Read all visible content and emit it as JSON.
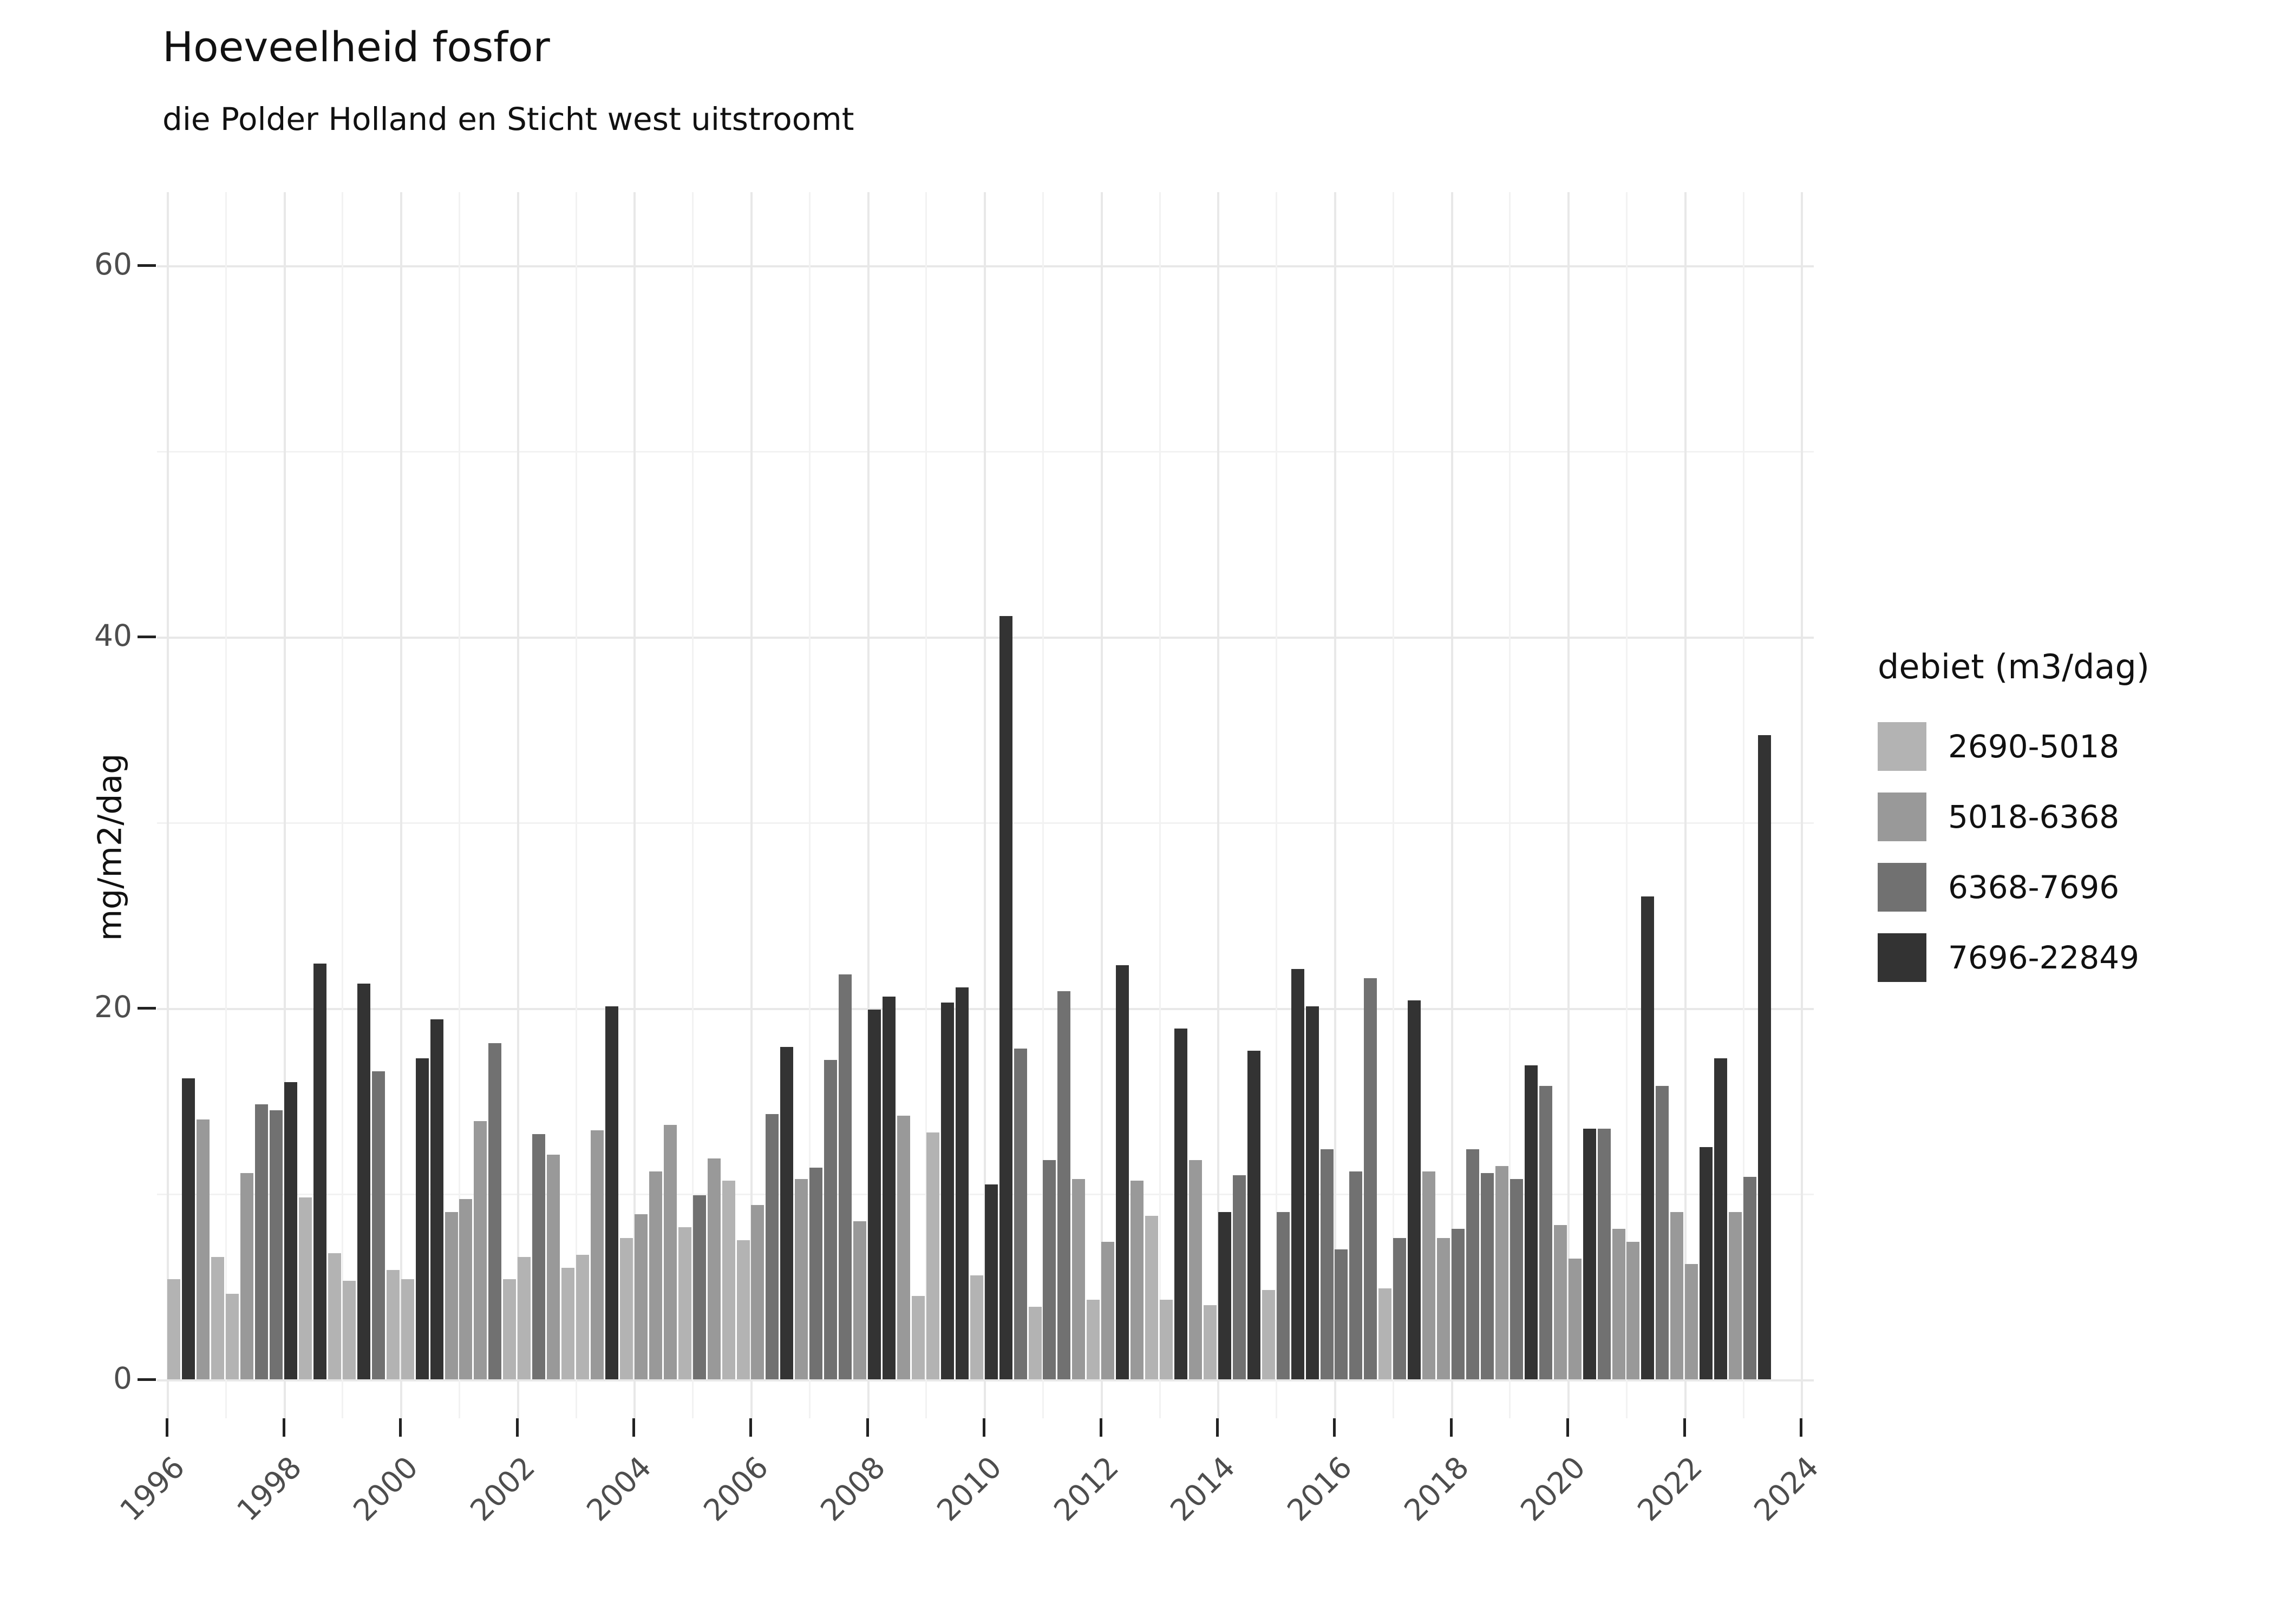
{
  "header": {
    "title": "Hoeveelheid fosfor",
    "subtitle": "die Polder Holland en Sticht west uitstroomt"
  },
  "chart_data": {
    "type": "bar",
    "title": "Hoeveelheid fosfor",
    "subtitle": "die Polder Holland en Sticht west uitstroomt",
    "xlabel": "",
    "ylabel": "mg/m2/dag",
    "ylim": [
      0,
      64
    ],
    "y_ticks": [
      0,
      20,
      40,
      60
    ],
    "y_minor_gridlines": [
      10,
      30,
      50
    ],
    "x_tick_years": [
      1996,
      1998,
      2000,
      2002,
      2004,
      2006,
      2008,
      2010,
      2012,
      2014,
      2016,
      2018,
      2020,
      2022,
      2024
    ],
    "x_year_range": [
      1996,
      2024
    ],
    "grid": "on",
    "legend_position": "right",
    "legend": {
      "title": "debiet (m3/dag)",
      "entries": [
        {
          "label": "2690-5018",
          "color": "#b3b3b3"
        },
        {
          "label": "5018-6368",
          "color": "#999999"
        },
        {
          "label": "6368-7696",
          "color": "#717171"
        },
        {
          "label": "7696-22849",
          "color": "#333333"
        }
      ]
    },
    "series_note": "value = mg/m2/dag per quarter; c = index into legend entries (flow quartile)",
    "bars": [
      {
        "year": 1996,
        "q": 1,
        "v": 5.4,
        "c": 0
      },
      {
        "year": 1996,
        "q": 2,
        "v": 16.2,
        "c": 3
      },
      {
        "year": 1996,
        "q": 3,
        "v": 14.0,
        "c": 1
      },
      {
        "year": 1996,
        "q": 4,
        "v": 6.6,
        "c": 0
      },
      {
        "year": 1997,
        "q": 1,
        "v": 4.6,
        "c": 0
      },
      {
        "year": 1997,
        "q": 2,
        "v": 11.1,
        "c": 1
      },
      {
        "year": 1997,
        "q": 3,
        "v": 14.8,
        "c": 2
      },
      {
        "year": 1997,
        "q": 4,
        "v": 14.5,
        "c": 2
      },
      {
        "year": 1998,
        "q": 1,
        "v": 16.0,
        "c": 3
      },
      {
        "year": 1998,
        "q": 2,
        "v": 9.8,
        "c": 0
      },
      {
        "year": 1998,
        "q": 3,
        "v": 22.4,
        "c": 3
      },
      {
        "year": 1998,
        "q": 4,
        "v": 6.8,
        "c": 0
      },
      {
        "year": 1999,
        "q": 1,
        "v": 5.3,
        "c": 0
      },
      {
        "year": 1999,
        "q": 2,
        "v": 21.3,
        "c": 3
      },
      {
        "year": 1999,
        "q": 3,
        "v": 16.6,
        "c": 2
      },
      {
        "year": 1999,
        "q": 4,
        "v": 5.9,
        "c": 0
      },
      {
        "year": 2000,
        "q": 1,
        "v": 5.4,
        "c": 0
      },
      {
        "year": 2000,
        "q": 2,
        "v": 17.3,
        "c": 3
      },
      {
        "year": 2000,
        "q": 3,
        "v": 19.4,
        "c": 3
      },
      {
        "year": 2000,
        "q": 4,
        "v": 9.0,
        "c": 1
      },
      {
        "year": 2001,
        "q": 1,
        "v": 9.7,
        "c": 1
      },
      {
        "year": 2001,
        "q": 2,
        "v": 13.9,
        "c": 1
      },
      {
        "year": 2001,
        "q": 3,
        "v": 18.1,
        "c": 2
      },
      {
        "year": 2001,
        "q": 4,
        "v": 5.4,
        "c": 0
      },
      {
        "year": 2002,
        "q": 1,
        "v": 6.6,
        "c": 0
      },
      {
        "year": 2002,
        "q": 2,
        "v": 13.2,
        "c": 2
      },
      {
        "year": 2002,
        "q": 3,
        "v": 12.1,
        "c": 1
      },
      {
        "year": 2002,
        "q": 4,
        "v": 6.0,
        "c": 0
      },
      {
        "year": 2003,
        "q": 1,
        "v": 6.7,
        "c": 0
      },
      {
        "year": 2003,
        "q": 2,
        "v": 13.4,
        "c": 1
      },
      {
        "year": 2003,
        "q": 3,
        "v": 20.1,
        "c": 3
      },
      {
        "year": 2003,
        "q": 4,
        "v": 7.6,
        "c": 0
      },
      {
        "year": 2004,
        "q": 1,
        "v": 8.9,
        "c": 1
      },
      {
        "year": 2004,
        "q": 2,
        "v": 11.2,
        "c": 1
      },
      {
        "year": 2004,
        "q": 3,
        "v": 13.7,
        "c": 1
      },
      {
        "year": 2004,
        "q": 4,
        "v": 8.2,
        "c": 0
      },
      {
        "year": 2005,
        "q": 1,
        "v": 9.9,
        "c": 2
      },
      {
        "year": 2005,
        "q": 2,
        "v": 11.9,
        "c": 1
      },
      {
        "year": 2005,
        "q": 3,
        "v": 10.7,
        "c": 0
      },
      {
        "year": 2005,
        "q": 4,
        "v": 7.5,
        "c": 0
      },
      {
        "year": 2006,
        "q": 1,
        "v": 9.4,
        "c": 1
      },
      {
        "year": 2006,
        "q": 2,
        "v": 14.3,
        "c": 2
      },
      {
        "year": 2006,
        "q": 3,
        "v": 17.9,
        "c": 3
      },
      {
        "year": 2006,
        "q": 4,
        "v": 10.8,
        "c": 1
      },
      {
        "year": 2007,
        "q": 1,
        "v": 11.4,
        "c": 2
      },
      {
        "year": 2007,
        "q": 2,
        "v": 17.2,
        "c": 2
      },
      {
        "year": 2007,
        "q": 3,
        "v": 21.8,
        "c": 2
      },
      {
        "year": 2007,
        "q": 4,
        "v": 8.5,
        "c": 1
      },
      {
        "year": 2008,
        "q": 1,
        "v": 19.9,
        "c": 3
      },
      {
        "year": 2008,
        "q": 2,
        "v": 20.6,
        "c": 3
      },
      {
        "year": 2008,
        "q": 3,
        "v": 14.2,
        "c": 1
      },
      {
        "year": 2008,
        "q": 4,
        "v": 4.5,
        "c": 0
      },
      {
        "year": 2009,
        "q": 1,
        "v": 13.3,
        "c": 0
      },
      {
        "year": 2009,
        "q": 2,
        "v": 20.3,
        "c": 3
      },
      {
        "year": 2009,
        "q": 3,
        "v": 21.1,
        "c": 3
      },
      {
        "year": 2009,
        "q": 4,
        "v": 5.6,
        "c": 0
      },
      {
        "year": 2010,
        "q": 1,
        "v": 10.5,
        "c": 3
      },
      {
        "year": 2010,
        "q": 2,
        "v": 41.1,
        "c": 3
      },
      {
        "year": 2010,
        "q": 3,
        "v": 17.8,
        "c": 2
      },
      {
        "year": 2010,
        "q": 4,
        "v": 3.9,
        "c": 0
      },
      {
        "year": 2011,
        "q": 1,
        "v": 11.8,
        "c": 2
      },
      {
        "year": 2011,
        "q": 2,
        "v": 20.9,
        "c": 2
      },
      {
        "year": 2011,
        "q": 3,
        "v": 10.8,
        "c": 1
      },
      {
        "year": 2011,
        "q": 4,
        "v": 4.3,
        "c": 0
      },
      {
        "year": 2012,
        "q": 1,
        "v": 7.4,
        "c": 1
      },
      {
        "year": 2012,
        "q": 2,
        "v": 22.3,
        "c": 3
      },
      {
        "year": 2012,
        "q": 3,
        "v": 10.7,
        "c": 1
      },
      {
        "year": 2012,
        "q": 4,
        "v": 8.8,
        "c": 0
      },
      {
        "year": 2013,
        "q": 1,
        "v": 4.3,
        "c": 0
      },
      {
        "year": 2013,
        "q": 2,
        "v": 18.9,
        "c": 3
      },
      {
        "year": 2013,
        "q": 3,
        "v": 11.8,
        "c": 1
      },
      {
        "year": 2013,
        "q": 4,
        "v": 4.0,
        "c": 0
      },
      {
        "year": 2014,
        "q": 1,
        "v": 9.0,
        "c": 3
      },
      {
        "year": 2014,
        "q": 2,
        "v": 11.0,
        "c": 2
      },
      {
        "year": 2014,
        "q": 3,
        "v": 17.7,
        "c": 3
      },
      {
        "year": 2014,
        "q": 4,
        "v": 4.8,
        "c": 0
      },
      {
        "year": 2015,
        "q": 1,
        "v": 9.0,
        "c": 2
      },
      {
        "year": 2015,
        "q": 2,
        "v": 22.1,
        "c": 3
      },
      {
        "year": 2015,
        "q": 3,
        "v": 20.1,
        "c": 3
      },
      {
        "year": 2015,
        "q": 4,
        "v": 12.4,
        "c": 2
      },
      {
        "year": 2016,
        "q": 1,
        "v": 7.0,
        "c": 2
      },
      {
        "year": 2016,
        "q": 2,
        "v": 11.2,
        "c": 2
      },
      {
        "year": 2016,
        "q": 3,
        "v": 21.6,
        "c": 2
      },
      {
        "year": 2016,
        "q": 4,
        "v": 4.9,
        "c": 0
      },
      {
        "year": 2017,
        "q": 1,
        "v": 7.6,
        "c": 2
      },
      {
        "year": 2017,
        "q": 2,
        "v": 20.4,
        "c": 3
      },
      {
        "year": 2017,
        "q": 3,
        "v": 11.2,
        "c": 1
      },
      {
        "year": 2017,
        "q": 4,
        "v": 7.6,
        "c": 1
      },
      {
        "year": 2018,
        "q": 1,
        "v": 8.1,
        "c": 2
      },
      {
        "year": 2018,
        "q": 2,
        "v": 12.4,
        "c": 2
      },
      {
        "year": 2018,
        "q": 3,
        "v": 11.1,
        "c": 2
      },
      {
        "year": 2018,
        "q": 4,
        "v": 11.5,
        "c": 1
      },
      {
        "year": 2019,
        "q": 1,
        "v": 10.8,
        "c": 2
      },
      {
        "year": 2019,
        "q": 2,
        "v": 16.9,
        "c": 3
      },
      {
        "year": 2019,
        "q": 3,
        "v": 15.8,
        "c": 2
      },
      {
        "year": 2019,
        "q": 4,
        "v": 8.3,
        "c": 1
      },
      {
        "year": 2020,
        "q": 1,
        "v": 6.5,
        "c": 1
      },
      {
        "year": 2020,
        "q": 2,
        "v": 13.5,
        "c": 3
      },
      {
        "year": 2020,
        "q": 3,
        "v": 13.5,
        "c": 2
      },
      {
        "year": 2020,
        "q": 4,
        "v": 8.1,
        "c": 1
      },
      {
        "year": 2021,
        "q": 1,
        "v": 7.4,
        "c": 1
      },
      {
        "year": 2021,
        "q": 2,
        "v": 26.0,
        "c": 3
      },
      {
        "year": 2021,
        "q": 3,
        "v": 15.8,
        "c": 2
      },
      {
        "year": 2021,
        "q": 4,
        "v": 9.0,
        "c": 1
      },
      {
        "year": 2022,
        "q": 1,
        "v": 6.2,
        "c": 1
      },
      {
        "year": 2022,
        "q": 2,
        "v": 12.5,
        "c": 3
      },
      {
        "year": 2022,
        "q": 3,
        "v": 17.3,
        "c": 3
      },
      {
        "year": 2022,
        "q": 4,
        "v": 9.0,
        "c": 1
      },
      {
        "year": 2023,
        "q": 1,
        "v": 10.9,
        "c": 2
      },
      {
        "year": 2023,
        "q": 2,
        "v": 34.7,
        "c": 3
      }
    ]
  }
}
